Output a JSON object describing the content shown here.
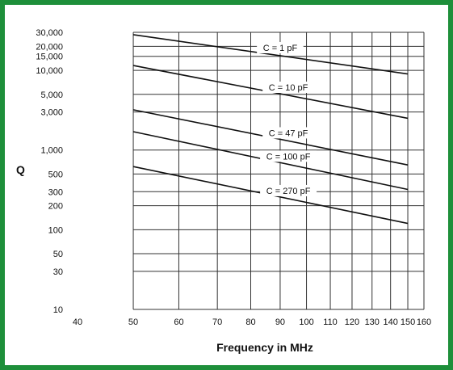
{
  "chart_data": {
    "type": "line",
    "title": "",
    "xlabel": "Frequency in MHz",
    "ylabel": "Q",
    "x_scale": "log",
    "y_scale": "log",
    "xlim": [
      40,
      160
    ],
    "ylim": [
      10,
      30000
    ],
    "x_ticks": [
      40,
      50,
      60,
      70,
      80,
      90,
      100,
      110,
      120,
      130,
      140,
      150,
      160
    ],
    "x_tick_labels": [
      "40",
      "50",
      "60",
      "70",
      "80",
      "90",
      "100",
      "110",
      "120",
      "130",
      "140",
      "150",
      "160"
    ],
    "y_ticks": [
      10,
      30,
      50,
      100,
      200,
      300,
      500,
      1000,
      3000,
      5000,
      10000,
      15000,
      20000,
      30000
    ],
    "y_tick_labels": [
      "10",
      "30",
      "50",
      "100",
      "200",
      "300",
      "500",
      "1,000",
      "3,000",
      "5,000",
      "10,000",
      "15,000",
      "20,000",
      "30,000"
    ],
    "grid": true,
    "series": [
      {
        "name": "C = 1 pF",
        "x": [
          50,
          150
        ],
        "y": [
          28000,
          9000
        ],
        "label_x": 90
      },
      {
        "name": "C = 10 pF",
        "x": [
          50,
          150
        ],
        "y": [
          11500,
          2500
        ],
        "label_x": 93
      },
      {
        "name": "C = 47 pF",
        "x": [
          50,
          150
        ],
        "y": [
          3200,
          650
        ],
        "label_x": 93
      },
      {
        "name": "C = 100 pF",
        "x": [
          50,
          150
        ],
        "y": [
          1700,
          320
        ],
        "label_x": 93
      },
      {
        "name": "C = 270 pF",
        "x": [
          50,
          150
        ],
        "y": [
          620,
          120
        ],
        "label_x": 93
      }
    ]
  }
}
